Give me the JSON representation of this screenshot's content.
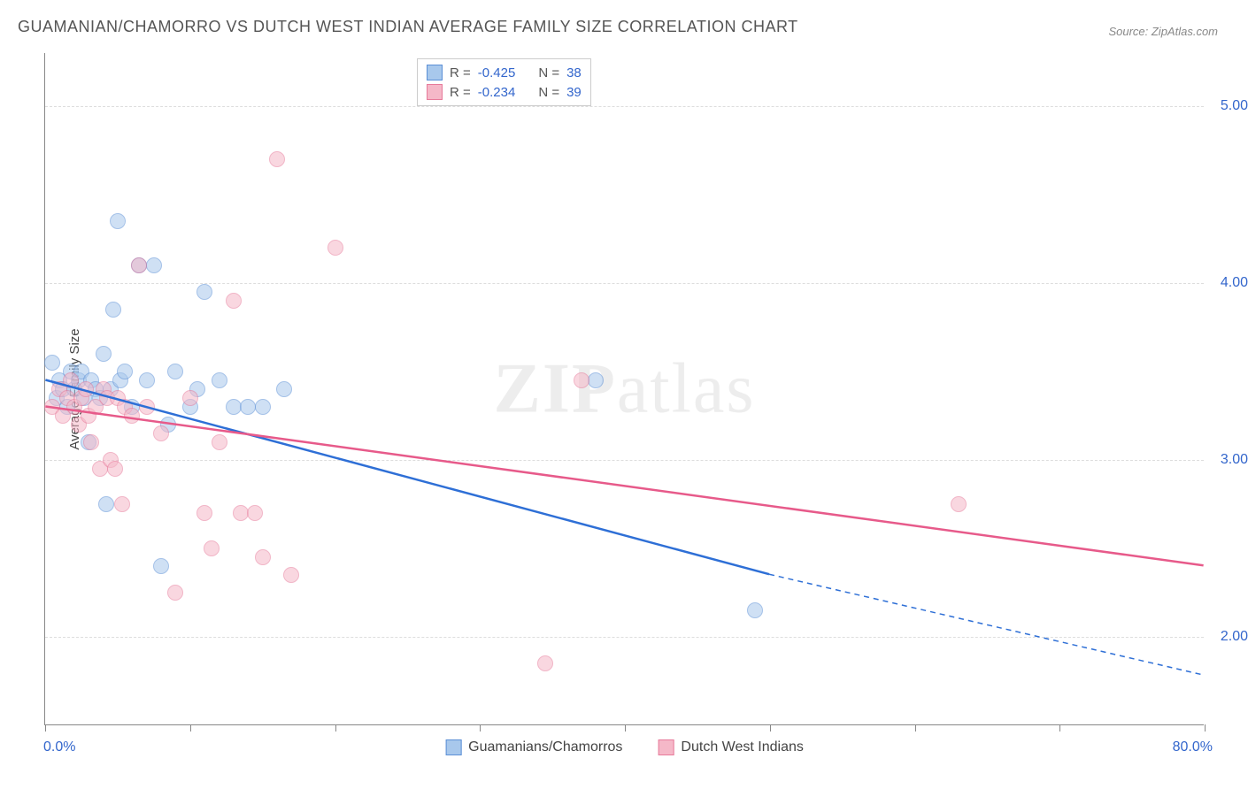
{
  "title": "GUAMANIAN/CHAMORRO VS DUTCH WEST INDIAN AVERAGE FAMILY SIZE CORRELATION CHART",
  "source": "Source: ZipAtlas.com",
  "watermark": {
    "part1": "ZIP",
    "part2": "atlas"
  },
  "yaxis_title": "Average Family Size",
  "chart": {
    "type": "scatter",
    "background_color": "#ffffff",
    "grid_color": "#dddddd",
    "axis_color": "#888888",
    "xlim": [
      0,
      80
    ],
    "ylim": [
      1.5,
      5.3
    ],
    "xticks_minor": [
      0,
      10,
      20,
      30,
      40,
      50,
      60,
      70,
      80
    ],
    "xaxis_labels": [
      {
        "pos": 0,
        "text": "0.0%"
      },
      {
        "pos": 80,
        "text": "80.0%"
      }
    ],
    "yticks": [
      {
        "v": 2.0,
        "label": "2.00"
      },
      {
        "v": 3.0,
        "label": "3.00"
      },
      {
        "v": 4.0,
        "label": "4.00"
      },
      {
        "v": 5.0,
        "label": "5.00"
      }
    ],
    "tick_label_color": "#3366cc",
    "tick_label_fontsize": 16,
    "marker_radius": 9,
    "marker_stroke_width": 1.5,
    "series": [
      {
        "name": "Guamanians/Chamorros",
        "fill": "#a8c8ec",
        "stroke": "#5b8fd6",
        "fill_opacity": 0.55,
        "R": "-0.425",
        "N": "38",
        "trend": {
          "color": "#2e6fd6",
          "width": 2.5,
          "x1": 0,
          "y1": 3.45,
          "x2_solid": 50,
          "y2_solid": 2.35,
          "x2_dash": 80,
          "y2_dash": 1.78
        },
        "points": [
          [
            0.5,
            3.55
          ],
          [
            0.8,
            3.35
          ],
          [
            1.0,
            3.45
          ],
          [
            1.2,
            3.4
          ],
          [
            1.5,
            3.3
          ],
          [
            1.8,
            3.5
          ],
          [
            2.0,
            3.4
          ],
          [
            2.3,
            3.45
          ],
          [
            2.5,
            3.5
          ],
          [
            2.7,
            3.35
          ],
          [
            3.0,
            3.1
          ],
          [
            3.2,
            3.45
          ],
          [
            3.5,
            3.4
          ],
          [
            3.8,
            3.35
          ],
          [
            4.0,
            3.6
          ],
          [
            4.2,
            2.75
          ],
          [
            4.5,
            3.4
          ],
          [
            4.7,
            3.85
          ],
          [
            5.0,
            4.35
          ],
          [
            5.2,
            3.45
          ],
          [
            5.5,
            3.5
          ],
          [
            6.0,
            3.3
          ],
          [
            6.5,
            4.1
          ],
          [
            7.0,
            3.45
          ],
          [
            7.5,
            4.1
          ],
          [
            8.0,
            2.4
          ],
          [
            8.5,
            3.2
          ],
          [
            9.0,
            3.5
          ],
          [
            10.0,
            3.3
          ],
          [
            10.5,
            3.4
          ],
          [
            11.0,
            3.95
          ],
          [
            12.0,
            3.45
          ],
          [
            13.0,
            3.3
          ],
          [
            14.0,
            3.3
          ],
          [
            15.0,
            3.3
          ],
          [
            16.5,
            3.4
          ],
          [
            49.0,
            2.15
          ],
          [
            38.0,
            3.45
          ]
        ]
      },
      {
        "name": "Dutch West Indians",
        "fill": "#f5b8c8",
        "stroke": "#e77a9a",
        "fill_opacity": 0.55,
        "R": "-0.234",
        "N": "39",
        "trend": {
          "color": "#e75a8a",
          "width": 2.5,
          "x1": 0,
          "y1": 3.3,
          "x2_solid": 80,
          "y2_solid": 2.4,
          "x2_dash": 80,
          "y2_dash": 2.4
        },
        "points": [
          [
            0.5,
            3.3
          ],
          [
            1.0,
            3.4
          ],
          [
            1.2,
            3.25
          ],
          [
            1.5,
            3.35
          ],
          [
            1.8,
            3.45
          ],
          [
            2.0,
            3.3
          ],
          [
            2.3,
            3.2
          ],
          [
            2.5,
            3.35
          ],
          [
            2.8,
            3.4
          ],
          [
            3.0,
            3.25
          ],
          [
            3.2,
            3.1
          ],
          [
            3.5,
            3.3
          ],
          [
            3.8,
            2.95
          ],
          [
            4.0,
            3.4
          ],
          [
            4.3,
            3.35
          ],
          [
            4.5,
            3.0
          ],
          [
            4.8,
            2.95
          ],
          [
            5.0,
            3.35
          ],
          [
            5.3,
            2.75
          ],
          [
            5.5,
            3.3
          ],
          [
            6.0,
            3.25
          ],
          [
            6.5,
            4.1
          ],
          [
            7.0,
            3.3
          ],
          [
            8.0,
            3.15
          ],
          [
            9.0,
            2.25
          ],
          [
            10.0,
            3.35
          ],
          [
            11.0,
            2.7
          ],
          [
            11.5,
            2.5
          ],
          [
            12.0,
            3.1
          ],
          [
            13.0,
            3.9
          ],
          [
            13.5,
            2.7
          ],
          [
            14.5,
            2.7
          ],
          [
            15.0,
            2.45
          ],
          [
            16.0,
            4.7
          ],
          [
            17.0,
            2.35
          ],
          [
            20.0,
            4.2
          ],
          [
            34.5,
            1.85
          ],
          [
            37.0,
            3.45
          ],
          [
            63.0,
            2.75
          ]
        ]
      }
    ]
  },
  "bottom_legend": [
    {
      "swatch_fill": "#a8c8ec",
      "swatch_stroke": "#5b8fd6",
      "label": "Guamanians/Chamorros"
    },
    {
      "swatch_fill": "#f5b8c8",
      "swatch_stroke": "#e77a9a",
      "label": "Dutch West Indians"
    }
  ],
  "trend_legend": {
    "R_label": "R =",
    "N_label": "N ="
  }
}
